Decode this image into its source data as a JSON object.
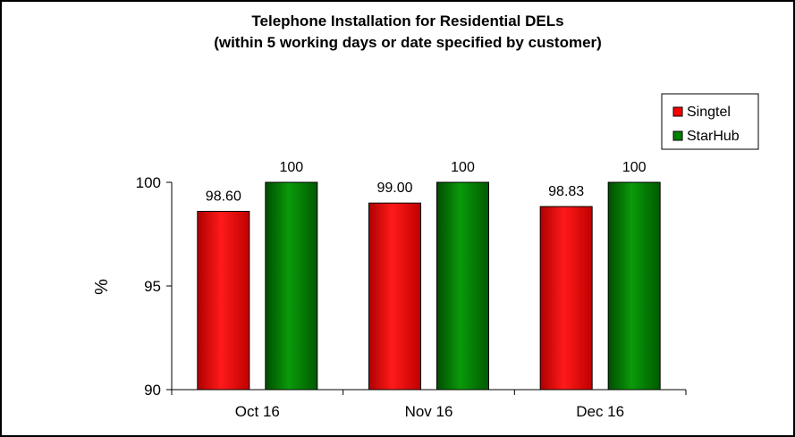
{
  "chart_data": {
    "type": "bar",
    "title": "Telephone Installation for Residential DELs",
    "subtitle": "(within 5 working days or date specified by customer)",
    "xlabel": "",
    "ylabel": "%",
    "categories": [
      "Oct 16",
      "Nov 16",
      "Dec 16"
    ],
    "series": [
      {
        "name": "Singtel",
        "color": "#ff0000",
        "values": [
          98.6,
          99.0,
          98.83
        ],
        "labels": [
          "98.60",
          "99.00",
          "98.83"
        ]
      },
      {
        "name": "StarHub",
        "color": "#008000",
        "values": [
          100,
          100,
          100
        ],
        "labels": [
          "100",
          "100",
          "100"
        ]
      }
    ],
    "ylim": [
      90,
      100
    ],
    "yticks": [
      "90",
      "95",
      "100"
    ],
    "grid": false,
    "legend_position": "top-right"
  }
}
